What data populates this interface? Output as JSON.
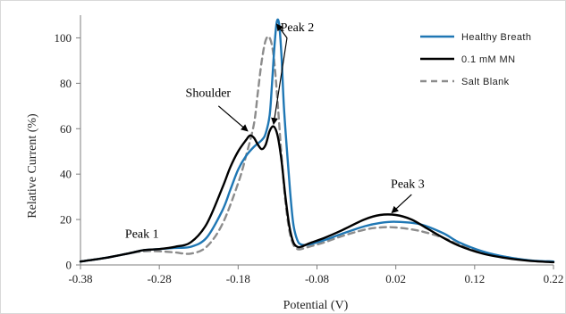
{
  "chart_data": {
    "type": "line",
    "xlabel": "Potential (V)",
    "ylabel": "Relative Current (%)",
    "xlim": [
      -0.38,
      0.22
    ],
    "ylim": [
      0,
      110
    ],
    "x_ticks": [
      -0.38,
      -0.28,
      -0.18,
      -0.08,
      0.02,
      0.12,
      0.22
    ],
    "x_tick_labels": [
      "-0.38",
      "-0.28",
      "-0.18",
      "-0.08",
      "0.02",
      "0.12",
      "0.22"
    ],
    "y_ticks": [
      0,
      20,
      40,
      60,
      80,
      100
    ],
    "y_tick_labels": [
      "0",
      "20",
      "40",
      "60",
      "80",
      "100"
    ],
    "grid": false,
    "legend": {
      "position": "top-right",
      "entries": [
        {
          "name": "Healthy Breath",
          "color": "#1f77b4",
          "style": "solid"
        },
        {
          "name": "0.1 mM MN",
          "color": "#000000",
          "style": "solid"
        },
        {
          "name": "Salt Blank",
          "color": "#8c8c8c",
          "style": "dashed"
        }
      ]
    },
    "series": [
      {
        "name": "Healthy Breath",
        "color": "#1f77b4",
        "dash": "",
        "x": [
          -0.38,
          -0.35,
          -0.32,
          -0.3,
          -0.28,
          -0.26,
          -0.24,
          -0.22,
          -0.2,
          -0.19,
          -0.18,
          -0.17,
          -0.16,
          -0.15,
          -0.145,
          -0.14,
          -0.137,
          -0.134,
          -0.131,
          -0.128,
          -0.125,
          -0.122,
          -0.118,
          -0.114,
          -0.11,
          -0.105,
          -0.1,
          -0.09,
          -0.07,
          -0.05,
          -0.02,
          0.0,
          0.02,
          0.05,
          0.08,
          0.1,
          0.13,
          0.16,
          0.19,
          0.22
        ],
        "y": [
          1.5,
          3,
          5,
          6.5,
          7,
          7.5,
          8,
          12,
          24,
          33,
          42,
          48,
          52,
          55,
          58,
          66,
          80,
          96,
          107,
          106,
          92,
          70,
          50,
          32,
          18,
          11,
          9,
          9,
          11,
          13.5,
          17,
          18.5,
          19,
          18,
          14,
          10,
          6,
          3.5,
          2,
          1.5
        ]
      },
      {
        "name": "0.1 mM MN",
        "color": "#000000",
        "dash": "",
        "x": [
          -0.38,
          -0.35,
          -0.32,
          -0.3,
          -0.28,
          -0.26,
          -0.24,
          -0.22,
          -0.2,
          -0.19,
          -0.18,
          -0.17,
          -0.165,
          -0.16,
          -0.155,
          -0.15,
          -0.145,
          -0.14,
          -0.135,
          -0.13,
          -0.125,
          -0.12,
          -0.115,
          -0.11,
          -0.105,
          -0.1,
          -0.09,
          -0.07,
          -0.05,
          -0.02,
          0.0,
          0.02,
          0.04,
          0.06,
          0.08,
          0.1,
          0.13,
          0.16,
          0.19,
          0.22
        ],
        "y": [
          1.5,
          3,
          5,
          6.5,
          7,
          8,
          10,
          18,
          34,
          43,
          50,
          55,
          57,
          56,
          53,
          51,
          53,
          59,
          61,
          57,
          46,
          30,
          17,
          10,
          8,
          8,
          9.5,
          12,
          15,
          20,
          22,
          22,
          20,
          16,
          12,
          8.5,
          5,
          3,
          1.8,
          1.2
        ]
      },
      {
        "name": "Salt Blank",
        "color": "#8c8c8c",
        "dash": "7,5",
        "x": [
          -0.38,
          -0.35,
          -0.32,
          -0.3,
          -0.28,
          -0.26,
          -0.24,
          -0.22,
          -0.2,
          -0.18,
          -0.17,
          -0.16,
          -0.155,
          -0.15,
          -0.145,
          -0.14,
          -0.135,
          -0.13,
          -0.125,
          -0.12,
          -0.115,
          -0.11,
          -0.105,
          -0.1,
          -0.09,
          -0.07,
          -0.05,
          -0.02,
          0.0,
          0.02,
          0.05,
          0.08,
          0.1,
          0.13,
          0.16,
          0.19,
          0.22
        ],
        "y": [
          1.5,
          3,
          5,
          6,
          6,
          5.5,
          5,
          8,
          18,
          36,
          48,
          62,
          76,
          90,
          99,
          100,
          92,
          72,
          48,
          28,
          15,
          9,
          7,
          7,
          8,
          10,
          12.5,
          15.5,
          16.5,
          16.5,
          15,
          12,
          9,
          5.5,
          3.5,
          2,
          1.5
        ]
      }
    ],
    "annotations": [
      {
        "text": "Peak 1",
        "x": -0.302,
        "y": 12
      },
      {
        "text": "Shoulder",
        "x": -0.218,
        "y": 74
      },
      {
        "text": "Peak 2",
        "x": -0.105,
        "y": 103
      },
      {
        "text": "Peak 3",
        "x": 0.035,
        "y": 34
      }
    ],
    "arrows": [
      {
        "from": [
          -0.205,
          70
        ],
        "to": [
          -0.168,
          59
        ]
      },
      {
        "from": [
          -0.118,
          100
        ],
        "to": [
          -0.131,
          106
        ]
      },
      {
        "from": [
          -0.118,
          100
        ],
        "to": [
          -0.135,
          62
        ]
      },
      {
        "from": [
          0.04,
          31
        ],
        "to": [
          0.015,
          23
        ]
      }
    ]
  }
}
